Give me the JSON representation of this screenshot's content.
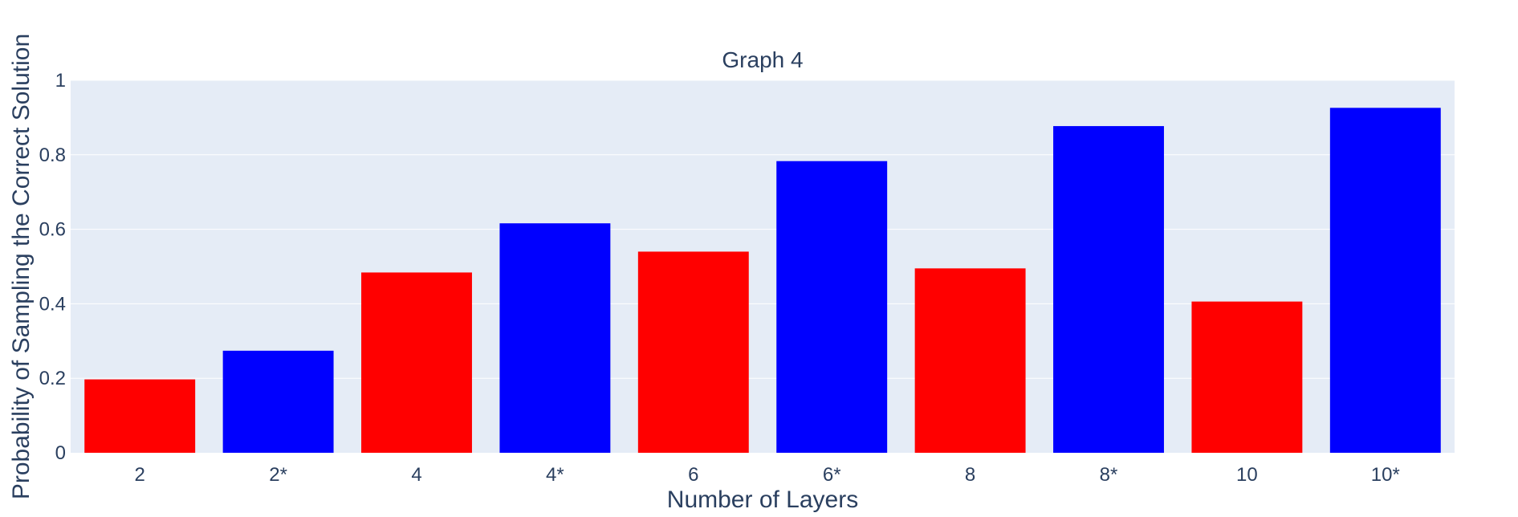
{
  "chart_data": {
    "type": "bar",
    "title": "Graph 4",
    "xlabel": "Number of Layers",
    "ylabel": "Probability of Sampling the Correct Solution",
    "categories": [
      "2",
      "2*",
      "4",
      "4*",
      "6",
      "6*",
      "8",
      "8*",
      "10",
      "10*"
    ],
    "values": [
      0.197,
      0.274,
      0.484,
      0.616,
      0.54,
      0.783,
      0.495,
      0.877,
      0.406,
      0.926
    ],
    "bar_colors": [
      "#ff0000",
      "#0000ff",
      "#ff0000",
      "#0000ff",
      "#ff0000",
      "#0000ff",
      "#ff0000",
      "#0000ff",
      "#ff0000",
      "#0000ff"
    ],
    "ylim": [
      0,
      1
    ],
    "yticks": [
      0,
      0.2,
      0.4,
      0.6,
      0.8,
      1
    ],
    "ytick_labels": [
      "0",
      "0.2",
      "0.4",
      "0.6",
      "0.8",
      "1"
    ],
    "grid": true,
    "legend": "none",
    "plot_background": "#e5ecf6",
    "text_color": "#2a3f5f"
  }
}
